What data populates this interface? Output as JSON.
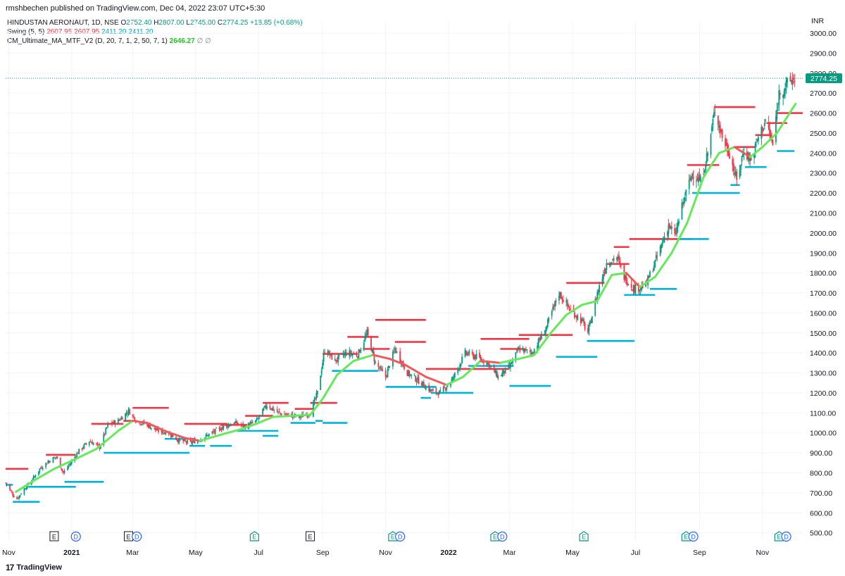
{
  "header": {
    "published": "rmshbechen published on TradingView.com, Dec 04, 2022 23:07 UTC+5:30"
  },
  "legend": {
    "symbol": "HINDUSTAN AERONAUT, 1D, NSE",
    "o_label": "O",
    "o_value": "2752.40",
    "h_label": "H",
    "h_value": "2807.00",
    "l_label": "L",
    "l_value": "2745.00",
    "c_label": "C",
    "c_value": "2774.25",
    "change": "+18.85 (+0.68%)",
    "swing_name": "Swing (5, 5)",
    "swing_v1": "2607.95",
    "swing_v2": "2607.95",
    "swing_v3": "2411.20",
    "swing_v4": "2411.20",
    "cm_name": "CM_Ultimate_MA_MTF_V2 (D, 20, 7, 1, 2, 50, 7, 1)",
    "cm_value": "2646.27",
    "eye_icon_1": "∅",
    "eye_icon_2": "∅"
  },
  "footer": {
    "brand": "TradingView",
    "brand_mark": "17"
  },
  "colors": {
    "up": "#089981",
    "down": "#f23645",
    "swing_high": "#f23645",
    "swing_low": "#00b4d8",
    "ma_up": "#66e85c",
    "ma_down": "#f05a5a",
    "grid": "#f0f3fa",
    "axis_text": "#131722",
    "last_price_bg": "#089981"
  },
  "chart_data": {
    "type": "candlestick",
    "symbol": "HINDUSTAN AERONAUT",
    "interval": "1D",
    "exchange": "NSE",
    "currency": "INR",
    "ylim": [
      460,
      3060
    ],
    "y_ticks": [
      "3000.00",
      "2900.00",
      "2800.00",
      "2700.00",
      "2600.00",
      "2500.00",
      "2400.00",
      "2300.00",
      "2200.00",
      "2100.00",
      "2000.00",
      "1900.00",
      "1800.00",
      "1700.00",
      "1600.00",
      "1500.00",
      "1400.00",
      "1300.00",
      "1200.00",
      "1100.00",
      "1000.00",
      "900.00",
      "800.00",
      "700.00",
      "600.00",
      "500.00"
    ],
    "x_ticks": [
      "Nov",
      "2021",
      "Mar",
      "May",
      "Jul",
      "Sep",
      "Nov",
      "2022",
      "Mar",
      "May",
      "Jul",
      "Sep",
      "Nov"
    ],
    "x_tick_dates": [
      "2020-11-01",
      "2021-01-01",
      "2021-03-01",
      "2021-05-01",
      "2021-07-01",
      "2021-09-01",
      "2021-11-01",
      "2022-01-01",
      "2022-03-01",
      "2022-05-01",
      "2022-07-01",
      "2022-09-01",
      "2022-11-01"
    ],
    "x_range": [
      "2020-10-29",
      "2022-12-10"
    ],
    "last_price": "2774.25",
    "last_price_value": 2774.25,
    "ma_last": 2646.27,
    "close_path": [
      [
        "2020-10-29",
        750
      ],
      [
        "2020-11-05",
        690
      ],
      [
        "2020-11-09",
        670
      ],
      [
        "2020-11-16",
        720
      ],
      [
        "2020-11-23",
        760
      ],
      [
        "2020-12-01",
        820
      ],
      [
        "2020-12-10",
        860
      ],
      [
        "2020-12-17",
        880
      ],
      [
        "2020-12-24",
        800
      ],
      [
        "2020-12-31",
        850
      ],
      [
        "2021-01-08",
        910
      ],
      [
        "2021-01-18",
        960
      ],
      [
        "2021-01-28",
        930
      ],
      [
        "2021-02-05",
        1040
      ],
      [
        "2021-02-15",
        1060
      ],
      [
        "2021-02-25",
        1110
      ],
      [
        "2021-03-05",
        1060
      ],
      [
        "2021-03-15",
        1040
      ],
      [
        "2021-03-25",
        1010
      ],
      [
        "2021-04-05",
        1000
      ],
      [
        "2021-04-15",
        960
      ],
      [
        "2021-04-26",
        950
      ],
      [
        "2021-05-06",
        970
      ],
      [
        "2021-05-17",
        1000
      ],
      [
        "2021-05-28",
        1030
      ],
      [
        "2021-06-08",
        1050
      ],
      [
        "2021-06-18",
        1030
      ],
      [
        "2021-06-29",
        1060
      ],
      [
        "2021-07-09",
        1140
      ],
      [
        "2021-07-20",
        1100
      ],
      [
        "2021-07-30",
        1090
      ],
      [
        "2021-08-10",
        1080
      ],
      [
        "2021-08-20",
        1100
      ],
      [
        "2021-08-27",
        1200
      ],
      [
        "2021-09-03",
        1420
      ],
      [
        "2021-09-13",
        1360
      ],
      [
        "2021-09-24",
        1400
      ],
      [
        "2021-10-05",
        1390
      ],
      [
        "2021-10-14",
        1500
      ],
      [
        "2021-10-22",
        1350
      ],
      [
        "2021-11-01",
        1280
      ],
      [
        "2021-11-10",
        1420
      ],
      [
        "2021-11-22",
        1300
      ],
      [
        "2021-12-03",
        1260
      ],
      [
        "2021-12-15",
        1210
      ],
      [
        "2021-12-24",
        1200
      ],
      [
        "2022-01-05",
        1270
      ],
      [
        "2022-01-17",
        1400
      ],
      [
        "2022-01-28",
        1380
      ],
      [
        "2022-02-08",
        1350
      ],
      [
        "2022-02-18",
        1280
      ],
      [
        "2022-03-01",
        1330
      ],
      [
        "2022-03-10",
        1420
      ],
      [
        "2022-03-23",
        1400
      ],
      [
        "2022-04-05",
        1520
      ],
      [
        "2022-04-18",
        1700
      ],
      [
        "2022-04-28",
        1620
      ],
      [
        "2022-05-10",
        1560
      ],
      [
        "2022-05-16",
        1500
      ],
      [
        "2022-05-25",
        1700
      ],
      [
        "2022-06-03",
        1850
      ],
      [
        "2022-06-13",
        1880
      ],
      [
        "2022-06-20",
        1780
      ],
      [
        "2022-06-30",
        1720
      ],
      [
        "2022-07-11",
        1740
      ],
      [
        "2022-07-22",
        1880
      ],
      [
        "2022-08-02",
        2040
      ],
      [
        "2022-08-08",
        1980
      ],
      [
        "2022-08-16",
        2150
      ],
      [
        "2022-08-25",
        2300
      ],
      [
        "2022-09-02",
        2260
      ],
      [
        "2022-09-09",
        2400
      ],
      [
        "2022-09-16",
        2620
      ],
      [
        "2022-09-23",
        2480
      ],
      [
        "2022-09-30",
        2400
      ],
      [
        "2022-10-07",
        2260
      ],
      [
        "2022-10-14",
        2420
      ],
      [
        "2022-10-21",
        2360
      ],
      [
        "2022-10-28",
        2480
      ],
      [
        "2022-11-04",
        2560
      ],
      [
        "2022-11-11",
        2440
      ],
      [
        "2022-11-17",
        2700
      ],
      [
        "2022-11-24",
        2740
      ],
      [
        "2022-12-02",
        2774.25
      ]
    ],
    "ma_line": [
      [
        "2020-11-08",
        705
      ],
      [
        "2020-11-25",
        760
      ],
      [
        "2020-12-15",
        820
      ],
      [
        "2021-01-05",
        870
      ],
      [
        "2021-01-25",
        920
      ],
      [
        "2021-02-15",
        1010
      ],
      [
        "2021-03-01",
        1060
      ],
      [
        "2021-03-15",
        1050
      ],
      [
        "2021-04-01",
        1010
      ],
      [
        "2021-04-20",
        975
      ],
      [
        "2021-05-05",
        960
      ],
      [
        "2021-05-25",
        990
      ],
      [
        "2021-06-15",
        1020
      ],
      [
        "2021-07-01",
        1050
      ],
      [
        "2021-07-15",
        1080
      ],
      [
        "2021-08-01",
        1085
      ],
      [
        "2021-08-20",
        1090
      ],
      [
        "2021-09-01",
        1170
      ],
      [
        "2021-09-15",
        1290
      ],
      [
        "2021-10-01",
        1360
      ],
      [
        "2021-10-20",
        1390
      ],
      [
        "2021-11-05",
        1370
      ],
      [
        "2021-11-20",
        1340
      ],
      [
        "2021-12-10",
        1280
      ],
      [
        "2021-12-30",
        1240
      ],
      [
        "2022-01-15",
        1280
      ],
      [
        "2022-02-01",
        1360
      ],
      [
        "2022-02-20",
        1350
      ],
      [
        "2022-03-10",
        1370
      ],
      [
        "2022-03-25",
        1390
      ],
      [
        "2022-04-10",
        1500
      ],
      [
        "2022-04-25",
        1590
      ],
      [
        "2022-05-10",
        1640
      ],
      [
        "2022-05-25",
        1660
      ],
      [
        "2022-06-08",
        1790
      ],
      [
        "2022-06-22",
        1800
      ],
      [
        "2022-07-05",
        1730
      ],
      [
        "2022-07-20",
        1780
      ],
      [
        "2022-08-05",
        1900
      ],
      [
        "2022-08-20",
        2050
      ],
      [
        "2022-09-05",
        2280
      ],
      [
        "2022-09-20",
        2400
      ],
      [
        "2022-10-05",
        2430
      ],
      [
        "2022-10-20",
        2380
      ],
      [
        "2022-11-01",
        2430
      ],
      [
        "2022-11-15",
        2500
      ],
      [
        "2022-12-03",
        2646.27
      ]
    ],
    "swing_highs": [
      [
        820,
        "2020-10-29",
        "2020-11-20"
      ],
      [
        890,
        "2020-12-07",
        "2021-01-05"
      ],
      [
        1045,
        "2021-01-20",
        "2021-02-20"
      ],
      [
        1060,
        "2021-02-20",
        "2021-03-05"
      ],
      [
        1125,
        "2021-03-01",
        "2021-04-05"
      ],
      [
        1045,
        "2021-04-20",
        "2021-06-01"
      ],
      [
        1040,
        "2021-05-25",
        "2021-06-20"
      ],
      [
        1085,
        "2021-06-18",
        "2021-07-15"
      ],
      [
        1150,
        "2021-07-05",
        "2021-07-30"
      ],
      [
        1120,
        "2021-08-05",
        "2021-08-25"
      ],
      [
        1150,
        "2021-08-20",
        "2021-09-15"
      ],
      [
        1395,
        "2021-09-01",
        "2021-10-05"
      ],
      [
        1480,
        "2021-09-25",
        "2021-10-25"
      ],
      [
        1420,
        "2021-10-10",
        "2021-11-05"
      ],
      [
        1565,
        "2021-10-22",
        "2021-12-10"
      ],
      [
        1455,
        "2021-11-10",
        "2021-12-10"
      ],
      [
        1320,
        "2021-12-10",
        "2022-03-01"
      ],
      [
        1420,
        "2022-02-20",
        "2022-03-15"
      ],
      [
        1470,
        "2022-02-01",
        "2022-03-20"
      ],
      [
        1490,
        "2022-03-10",
        "2022-05-01"
      ],
      [
        1750,
        "2022-04-25",
        "2022-06-01"
      ],
      [
        1845,
        "2022-06-03",
        "2022-06-25"
      ],
      [
        1930,
        "2022-06-10",
        "2022-06-25"
      ],
      [
        1970,
        "2022-06-25",
        "2022-08-25"
      ],
      [
        2340,
        "2022-08-20",
        "2022-09-20"
      ],
      [
        2630,
        "2022-09-15",
        "2022-10-25"
      ],
      [
        2430,
        "2022-10-05",
        "2022-10-25"
      ],
      [
        2490,
        "2022-10-25",
        "2022-11-10"
      ],
      [
        2550,
        "2022-11-05",
        "2022-11-25"
      ],
      [
        2600,
        "2022-11-15",
        "2022-12-10"
      ]
    ],
    "swing_lows": [
      [
        740,
        "2020-10-29",
        "2020-11-05"
      ],
      [
        655,
        "2020-11-05",
        "2020-12-01"
      ],
      [
        730,
        "2020-11-20",
        "2021-01-05"
      ],
      [
        755,
        "2020-12-25",
        "2021-02-01"
      ],
      [
        900,
        "2021-02-01",
        "2021-04-25"
      ],
      [
        970,
        "2021-04-01",
        "2021-05-01"
      ],
      [
        935,
        "2021-04-25",
        "2021-05-10"
      ],
      [
        935,
        "2021-05-15",
        "2021-06-05"
      ],
      [
        1010,
        "2021-06-10",
        "2021-07-20"
      ],
      [
        985,
        "2021-07-05",
        "2021-07-20"
      ],
      [
        1050,
        "2021-08-01",
        "2021-08-25"
      ],
      [
        1060,
        "2021-08-25",
        "2021-09-01"
      ],
      [
        1050,
        "2021-09-01",
        "2021-09-25"
      ],
      [
        1310,
        "2021-09-10",
        "2021-10-01"
      ],
      [
        1310,
        "2021-10-01",
        "2021-10-25"
      ],
      [
        1230,
        "2021-11-01",
        "2021-12-20"
      ],
      [
        1175,
        "2021-12-05",
        "2021-12-15"
      ],
      [
        1200,
        "2021-12-15",
        "2022-01-25"
      ],
      [
        1335,
        "2022-01-20",
        "2022-03-05"
      ],
      [
        1235,
        "2022-03-01",
        "2022-04-10"
      ],
      [
        1380,
        "2022-04-15",
        "2022-05-25"
      ],
      [
        1460,
        "2022-05-15",
        "2022-06-30"
      ],
      [
        1690,
        "2022-06-20",
        "2022-07-20"
      ],
      [
        1720,
        "2022-07-15",
        "2022-08-10"
      ],
      [
        1970,
        "2022-08-10",
        "2022-09-10"
      ],
      [
        2200,
        "2022-08-25",
        "2022-10-10"
      ],
      [
        2240,
        "2022-10-01",
        "2022-10-10"
      ],
      [
        2330,
        "2022-10-15",
        "2022-11-05"
      ],
      [
        2410,
        "2022-11-15",
        "2022-12-02"
      ]
    ],
    "events": [
      {
        "label": "E",
        "date": "2020-12-15",
        "style": "box"
      },
      {
        "label": "D",
        "date": "2021-01-05",
        "style": "circle-blue"
      },
      {
        "label": "E",
        "date": "2021-02-25",
        "style": "box"
      },
      {
        "label": "D",
        "date": "2021-03-05",
        "style": "circle-blue"
      },
      {
        "label": "E",
        "date": "2021-06-27",
        "style": "house-green"
      },
      {
        "label": "E",
        "date": "2021-08-20",
        "style": "box"
      },
      {
        "label": "E",
        "date": "2021-11-08",
        "style": "house-green"
      },
      {
        "label": "D",
        "date": "2021-11-15",
        "style": "circle-blue"
      },
      {
        "label": "E",
        "date": "2022-02-15",
        "style": "house-green"
      },
      {
        "label": "D",
        "date": "2022-02-22",
        "style": "circle-blue"
      },
      {
        "label": "E",
        "date": "2022-05-12",
        "style": "house-green"
      },
      {
        "label": "E",
        "date": "2022-08-19",
        "style": "house-green"
      },
      {
        "label": "D",
        "date": "2022-08-26",
        "style": "circle-blue"
      },
      {
        "label": "E",
        "date": "2022-11-17",
        "style": "house-green"
      },
      {
        "label": "D",
        "date": "2022-11-24",
        "style": "circle-blue"
      }
    ]
  }
}
